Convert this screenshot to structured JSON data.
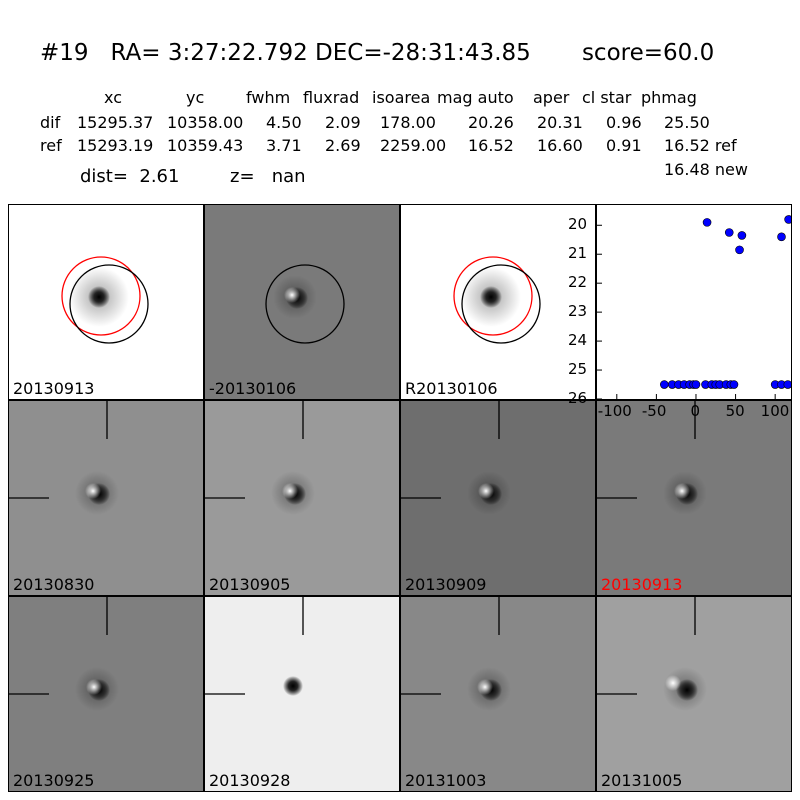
{
  "header": {
    "title": "#19   RA= 3:27:22.792 DEC=-28:31:43.85       score=60.0",
    "columns": [
      "xc",
      "yc",
      "fwhm",
      "fluxrad",
      "isoarea",
      "mag auto",
      "aper",
      "cl star",
      "phmag"
    ],
    "dif": {
      "label": "dif",
      "values": [
        "15295.37",
        "10358.00",
        "4.50",
        "2.09",
        "178.00",
        "20.26",
        "20.31",
        "0.96",
        "25.50"
      ]
    },
    "ref": {
      "label": "ref",
      "values": [
        "15293.19",
        "10359.43",
        "3.71",
        "2.69",
        "2259.00",
        "16.52",
        "16.60",
        "0.91",
        "16.52 ref"
      ]
    },
    "new_mag": "16.48 new",
    "dist": "dist=  2.61",
    "z": "z=   nan"
  },
  "stamps": [
    {
      "label": "20130913",
      "bg": "#ffffff",
      "kind": "star",
      "circles": true
    },
    {
      "label": "-20130106",
      "bg": "#7a7a7a",
      "kind": "dipole",
      "circles": "black"
    },
    {
      "label": "R20130106",
      "bg": "#ffffff",
      "kind": "star",
      "circles": true
    },
    {
      "label": "20130830",
      "bg": "#8f8f8f",
      "kind": "dipole2",
      "highlight": false
    },
    {
      "label": "20130905",
      "bg": "#9a9a9a",
      "kind": "dipole",
      "highlight": false
    },
    {
      "label": "20130909",
      "bg": "#6e6e6e",
      "kind": "dipole",
      "highlight": false
    },
    {
      "label": "20130913",
      "bg": "#7a7a7a",
      "kind": "dipole",
      "highlight": true
    },
    {
      "label": "20130925",
      "bg": "#7f7f7f",
      "kind": "dipole",
      "highlight": false
    },
    {
      "label": "20130928",
      "bg": "#eeeeee",
      "kind": "dot",
      "highlight": false
    },
    {
      "label": "20131003",
      "bg": "#888888",
      "kind": "dipole2",
      "highlight": false
    },
    {
      "label": "20131005",
      "bg": "#a0a0a0",
      "kind": "dipole3",
      "highlight": false
    }
  ],
  "chart_data": {
    "type": "scatter",
    "title": "",
    "xlabel": "",
    "ylabel": "",
    "xlim": [
      -125,
      120
    ],
    "ylim": [
      26,
      19.3
    ],
    "xticks": [
      "-100",
      "-50",
      "0",
      "50",
      "100"
    ],
    "yticks": [
      "20",
      "21",
      "22",
      "23",
      "24",
      "25",
      "26"
    ],
    "marker_color": "#0000ff",
    "points": [
      [
        -40,
        25.5
      ],
      [
        -30,
        25.5
      ],
      [
        -22,
        25.5
      ],
      [
        -15,
        25.5
      ],
      [
        -8,
        25.5
      ],
      [
        -3,
        25.5
      ],
      [
        0,
        25.5
      ],
      [
        12,
        25.5
      ],
      [
        20,
        25.5
      ],
      [
        25,
        25.5
      ],
      [
        30,
        25.5
      ],
      [
        38,
        25.5
      ],
      [
        44,
        25.5
      ],
      [
        48,
        25.5
      ],
      [
        100,
        25.5
      ],
      [
        108,
        25.5
      ],
      [
        116,
        25.5
      ],
      [
        14,
        19.9
      ],
      [
        42,
        20.25
      ],
      [
        58,
        20.35
      ],
      [
        55,
        20.85
      ],
      [
        108,
        20.4
      ],
      [
        117,
        19.8
      ]
    ]
  }
}
